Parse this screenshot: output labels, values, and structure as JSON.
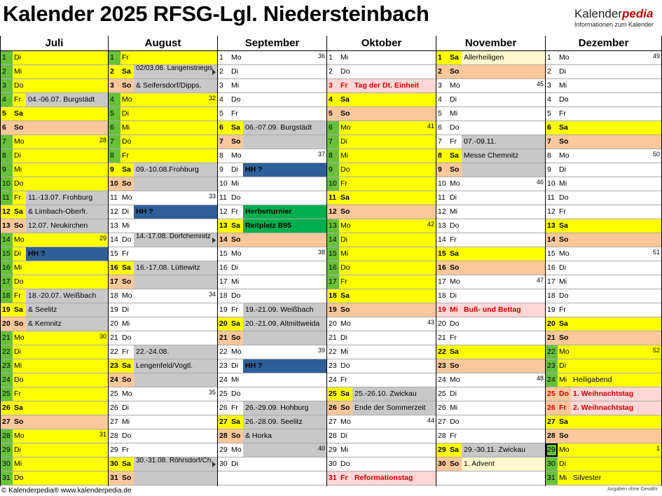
{
  "title": "Kalender 2025 RFSG-Lgl. Niedersteinbach",
  "brand": {
    "name_a": "Kalender",
    "name_b": "pedia",
    "tagline": "Informationen zum Kalender"
  },
  "footer": {
    "left": "© Kalenderpedia®   www.kalenderpedia.de",
    "right": "Angaben ohne Gewähr"
  },
  "colors": {
    "weekday_green": "#66c23a",
    "yellow": "#ffff00",
    "weekend_orange": "#fcc89b",
    "event_gray": "#c8c8c8",
    "hh_blue": "#2f5f99",
    "turnier_green": "#00b04f",
    "holiday_pink": "#ffd7d7",
    "light_yellow": "#fff8cc"
  },
  "months": [
    {
      "name": "Juli",
      "rows": [
        {
          "d": "1",
          "w": "Di",
          "t": "wd"
        },
        {
          "d": "2",
          "w": "Mi",
          "t": "wd"
        },
        {
          "d": "3",
          "w": "Do",
          "t": "wd"
        },
        {
          "d": "4",
          "w": "Fr",
          "t": "wd",
          "ev": "04.-06.07. Burgstädt",
          "ec": "gray"
        },
        {
          "d": "5",
          "w": "Sa",
          "t": "sat"
        },
        {
          "d": "6",
          "w": "So",
          "t": "sun"
        },
        {
          "d": "7",
          "w": "Mo",
          "t": "wd",
          "kw": "28"
        },
        {
          "d": "8",
          "w": "Di",
          "t": "wd"
        },
        {
          "d": "9",
          "w": "Mi",
          "t": "wd"
        },
        {
          "d": "10",
          "w": "Do",
          "t": "wd"
        },
        {
          "d": "11",
          "w": "Fr",
          "t": "wd",
          "ev": "11.-13.07. Frohburg",
          "ec": "gray"
        },
        {
          "d": "12",
          "w": "Sa",
          "t": "sat",
          "ev": "& Limbach-Oberfr.",
          "ec": "gray"
        },
        {
          "d": "13",
          "w": "So",
          "t": "sun",
          "ev": "12.07. Neukirchen",
          "ec": "gray"
        },
        {
          "d": "14",
          "w": "Mo",
          "t": "wd",
          "kw": "29"
        },
        {
          "d": "15",
          "w": "Di",
          "t": "wd",
          "ev": "HH ?",
          "ec": "blue"
        },
        {
          "d": "16",
          "w": "Mi",
          "t": "wd"
        },
        {
          "d": "17",
          "w": "Do",
          "t": "wd"
        },
        {
          "d": "18",
          "w": "Fr",
          "t": "wd",
          "ev": "18.-20.07. Weißbach",
          "ec": "gray"
        },
        {
          "d": "19",
          "w": "Sa",
          "t": "sat",
          "ev": "& Seelitz",
          "ec": "gray"
        },
        {
          "d": "20",
          "w": "So",
          "t": "sun",
          "ev": "& Kemnitz",
          "ec": "gray"
        },
        {
          "d": "21",
          "w": "Mo",
          "t": "wd",
          "kw": "30"
        },
        {
          "d": "22",
          "w": "Di",
          "t": "wd"
        },
        {
          "d": "23",
          "w": "Mi",
          "t": "wd"
        },
        {
          "d": "24",
          "w": "Do",
          "t": "wd"
        },
        {
          "d": "25",
          "w": "Fr",
          "t": "wd"
        },
        {
          "d": "26",
          "w": "Sa",
          "t": "sat"
        },
        {
          "d": "27",
          "w": "So",
          "t": "sun"
        },
        {
          "d": "28",
          "w": "Mo",
          "t": "wd",
          "kw": "31"
        },
        {
          "d": "29",
          "w": "Di",
          "t": "wd"
        },
        {
          "d": "30",
          "w": "Mi",
          "t": "wd"
        },
        {
          "d": "31",
          "w": "Do",
          "t": "wd"
        }
      ]
    },
    {
      "name": "August",
      "rows": [
        {
          "d": "1",
          "w": "Fr",
          "t": "wd"
        },
        {
          "d": "2",
          "w": "Sa",
          "t": "sat",
          "ev": "02/03.08. Langenstriegis",
          "ec": "gray",
          "two": true,
          "mk": true
        },
        {
          "d": "3",
          "w": "So",
          "t": "sun",
          "ev": "& Seifersdorf/Dipps.",
          "ec": "gray"
        },
        {
          "d": "4",
          "w": "Mo",
          "t": "wd",
          "kw": "32"
        },
        {
          "d": "5",
          "w": "Di",
          "t": "wd"
        },
        {
          "d": "6",
          "w": "Mi",
          "t": "wd"
        },
        {
          "d": "7",
          "w": "Do",
          "t": "wd"
        },
        {
          "d": "8",
          "w": "Fr",
          "t": "wd"
        },
        {
          "d": "9",
          "w": "Sa",
          "t": "sat",
          "ev": "09.-10.08.Frohburg",
          "ec": "gray"
        },
        {
          "d": "10",
          "w": "So",
          "t": "sun",
          "ec": "gray"
        },
        {
          "d": "11",
          "w": "Mo",
          "t": "plain",
          "kw": "33"
        },
        {
          "d": "12",
          "w": "Di",
          "t": "plain",
          "ev": "HH ?",
          "ec": "blue"
        },
        {
          "d": "13",
          "w": "Mi",
          "t": "plain"
        },
        {
          "d": "14",
          "w": "Do",
          "t": "plain",
          "ev": "14.-17.08. Dorfchemnitz",
          "ec": "gray",
          "two": true,
          "mk": true
        },
        {
          "d": "15",
          "w": "Fr",
          "t": "plain"
        },
        {
          "d": "16",
          "w": "Sa",
          "t": "sat",
          "ev": "16.-17.08. Lüttewitz",
          "ec": "gray"
        },
        {
          "d": "17",
          "w": "So",
          "t": "sun",
          "ec": "gray"
        },
        {
          "d": "18",
          "w": "Mo",
          "t": "plain",
          "kw": "34"
        },
        {
          "d": "19",
          "w": "Di",
          "t": "plain"
        },
        {
          "d": "20",
          "w": "Mi",
          "t": "plain"
        },
        {
          "d": "21",
          "w": "Do",
          "t": "plain"
        },
        {
          "d": "22",
          "w": "Fr",
          "t": "plain",
          "ev": "22.-24.08.",
          "ec": "gray"
        },
        {
          "d": "23",
          "w": "Sa",
          "t": "sat",
          "ev": "Lengenfeld/Vogtl.",
          "ec": "gray"
        },
        {
          "d": "24",
          "w": "So",
          "t": "sun",
          "ec": "gray"
        },
        {
          "d": "25",
          "w": "Mo",
          "t": "plain",
          "kw": "35"
        },
        {
          "d": "26",
          "w": "Di",
          "t": "plain"
        },
        {
          "d": "27",
          "w": "Mi",
          "t": "plain"
        },
        {
          "d": "28",
          "w": "Do",
          "t": "plain"
        },
        {
          "d": "29",
          "w": "Fr",
          "t": "plain"
        },
        {
          "d": "30",
          "w": "Sa",
          "t": "sat",
          "ev": "30.-31.08. Röhrsdorf/Ch.",
          "ec": "gray",
          "two": true,
          "mk": true
        },
        {
          "d": "31",
          "w": "So",
          "t": "sun",
          "ec": "gray"
        }
      ]
    },
    {
      "name": "September",
      "rows": [
        {
          "d": "1",
          "w": "Mo",
          "t": "plain",
          "kw": "36"
        },
        {
          "d": "2",
          "w": "Di",
          "t": "plain"
        },
        {
          "d": "3",
          "w": "Mi",
          "t": "plain"
        },
        {
          "d": "4",
          "w": "Do",
          "t": "plain"
        },
        {
          "d": "5",
          "w": "Fr",
          "t": "plain"
        },
        {
          "d": "6",
          "w": "Sa",
          "t": "sat",
          "ev": "06.-07.09. Burgstädt",
          "ec": "gray"
        },
        {
          "d": "7",
          "w": "So",
          "t": "sun",
          "ec": "gray"
        },
        {
          "d": "8",
          "w": "Mo",
          "t": "plain",
          "kw": "37"
        },
        {
          "d": "9",
          "w": "Di",
          "t": "plain",
          "ev": "HH ?",
          "ec": "blue"
        },
        {
          "d": "10",
          "w": "Mi",
          "t": "plain"
        },
        {
          "d": "11",
          "w": "Do",
          "t": "plain"
        },
        {
          "d": "12",
          "w": "Fr",
          "t": "plain",
          "ev": "Herbstturnier",
          "ec": "green"
        },
        {
          "d": "13",
          "w": "Sa",
          "t": "sat",
          "ev": "Reitplatz B95",
          "ec": "green"
        },
        {
          "d": "14",
          "w": "So",
          "t": "sun"
        },
        {
          "d": "15",
          "w": "Mo",
          "t": "plain",
          "kw": "38"
        },
        {
          "d": "16",
          "w": "Di",
          "t": "plain"
        },
        {
          "d": "17",
          "w": "Mi",
          "t": "plain"
        },
        {
          "d": "18",
          "w": "Do",
          "t": "plain"
        },
        {
          "d": "19",
          "w": "Fr",
          "t": "plain",
          "ev": "19.-21.09. Weißbach",
          "ec": "gray"
        },
        {
          "d": "20",
          "w": "Sa",
          "t": "sat",
          "ev": "20.-21.09. Altmittweida",
          "ec": "gray"
        },
        {
          "d": "21",
          "w": "So",
          "t": "sun",
          "ec": "gray"
        },
        {
          "d": "22",
          "w": "Mo",
          "t": "plain",
          "kw": "39"
        },
        {
          "d": "23",
          "w": "Di",
          "t": "plain",
          "ev": "HH ?",
          "ec": "blue"
        },
        {
          "d": "24",
          "w": "Mi",
          "t": "plain"
        },
        {
          "d": "25",
          "w": "Do",
          "t": "plain"
        },
        {
          "d": "26",
          "w": "Fr",
          "t": "plain",
          "ev": "26.-29.09. Hohburg",
          "ec": "gray"
        },
        {
          "d": "27",
          "w": "Sa",
          "t": "sat",
          "ev": "26.-28.09. Seelitz",
          "ec": "gray"
        },
        {
          "d": "28",
          "w": "So",
          "t": "sun",
          "ev": "& Horka",
          "ec": "gray"
        },
        {
          "d": "29",
          "w": "Mo",
          "t": "plain",
          "kw": "40",
          "ec": "gray"
        },
        {
          "d": "30",
          "w": "Di",
          "t": "plain"
        },
        {
          "d": "",
          "w": "",
          "t": "empty"
        }
      ]
    },
    {
      "name": "Oktober",
      "rows": [
        {
          "d": "1",
          "w": "Mi",
          "t": "plain"
        },
        {
          "d": "2",
          "w": "Do",
          "t": "plain"
        },
        {
          "d": "3",
          "w": "Fr",
          "t": "hol",
          "ev": "Tag der Dt. Einheit",
          "ec": "pink"
        },
        {
          "d": "4",
          "w": "Sa",
          "t": "sat"
        },
        {
          "d": "5",
          "w": "So",
          "t": "sun"
        },
        {
          "d": "6",
          "w": "Mo",
          "t": "wd",
          "kw": "41"
        },
        {
          "d": "7",
          "w": "Di",
          "t": "wd"
        },
        {
          "d": "8",
          "w": "Mi",
          "t": "wd"
        },
        {
          "d": "9",
          "w": "Do",
          "t": "wd"
        },
        {
          "d": "10",
          "w": "Fr",
          "t": "wd"
        },
        {
          "d": "11",
          "w": "Sa",
          "t": "sat"
        },
        {
          "d": "12",
          "w": "So",
          "t": "sun"
        },
        {
          "d": "13",
          "w": "Mo",
          "t": "wd",
          "kw": "42"
        },
        {
          "d": "14",
          "w": "Di",
          "t": "wd"
        },
        {
          "d": "15",
          "w": "Mi",
          "t": "wd"
        },
        {
          "d": "16",
          "w": "Do",
          "t": "wd"
        },
        {
          "d": "17",
          "w": "Fr",
          "t": "wd"
        },
        {
          "d": "18",
          "w": "Sa",
          "t": "sat"
        },
        {
          "d": "19",
          "w": "So",
          "t": "sun"
        },
        {
          "d": "20",
          "w": "Mo",
          "t": "plain",
          "kw": "43"
        },
        {
          "d": "21",
          "w": "Di",
          "t": "plain"
        },
        {
          "d": "22",
          "w": "Mi",
          "t": "plain"
        },
        {
          "d": "23",
          "w": "Do",
          "t": "plain"
        },
        {
          "d": "24",
          "w": "Fr",
          "t": "plain"
        },
        {
          "d": "25",
          "w": "Sa",
          "t": "sat",
          "ev": "25.-26.10. Zwickau",
          "ec": "gray"
        },
        {
          "d": "26",
          "w": "So",
          "t": "sun",
          "ev": "Ende der Sommerzeit",
          "ec": "gray"
        },
        {
          "d": "27",
          "w": "Mo",
          "t": "plain",
          "kw": "44"
        },
        {
          "d": "28",
          "w": "Di",
          "t": "plain"
        },
        {
          "d": "29",
          "w": "Mi",
          "t": "plain"
        },
        {
          "d": "30",
          "w": "Do",
          "t": "plain"
        },
        {
          "d": "31",
          "w": "Fr",
          "t": "hol",
          "ev": "Reformationstag",
          "ec": "pink"
        }
      ]
    },
    {
      "name": "November",
      "rows": [
        {
          "d": "1",
          "w": "Sa",
          "t": "sat",
          "ev": "Allerheiligen",
          "ec": "lightyellow"
        },
        {
          "d": "2",
          "w": "So",
          "t": "sun"
        },
        {
          "d": "3",
          "w": "Mo",
          "t": "plain",
          "kw": "45"
        },
        {
          "d": "4",
          "w": "Di",
          "t": "plain"
        },
        {
          "d": "5",
          "w": "Mi",
          "t": "plain"
        },
        {
          "d": "6",
          "w": "Do",
          "t": "plain"
        },
        {
          "d": "7",
          "w": "Fr",
          "t": "plain",
          "ev": "07.-09.11.",
          "ec": "gray"
        },
        {
          "d": "8",
          "w": "Sa",
          "t": "sat",
          "ev": "Messe Chemnitz",
          "ec": "gray"
        },
        {
          "d": "9",
          "w": "So",
          "t": "sun",
          "ec": "gray"
        },
        {
          "d": "10",
          "w": "Mo",
          "t": "plain",
          "kw": "46"
        },
        {
          "d": "11",
          "w": "Di",
          "t": "plain"
        },
        {
          "d": "12",
          "w": "Mi",
          "t": "plain"
        },
        {
          "d": "13",
          "w": "Do",
          "t": "plain"
        },
        {
          "d": "14",
          "w": "Fr",
          "t": "plain"
        },
        {
          "d": "15",
          "w": "Sa",
          "t": "sat"
        },
        {
          "d": "16",
          "w": "So",
          "t": "sun"
        },
        {
          "d": "17",
          "w": "Mo",
          "t": "plain",
          "kw": "47"
        },
        {
          "d": "18",
          "w": "Di",
          "t": "plain"
        },
        {
          "d": "19",
          "w": "Mi",
          "t": "hol",
          "ev": "Buß- und Bettag",
          "ec": "pink"
        },
        {
          "d": "20",
          "w": "Do",
          "t": "plain"
        },
        {
          "d": "21",
          "w": "Fr",
          "t": "plain"
        },
        {
          "d": "22",
          "w": "Sa",
          "t": "sat"
        },
        {
          "d": "23",
          "w": "So",
          "t": "sun"
        },
        {
          "d": "24",
          "w": "Mo",
          "t": "plain",
          "kw": "48"
        },
        {
          "d": "25",
          "w": "Di",
          "t": "plain"
        },
        {
          "d": "26",
          "w": "Mi",
          "t": "plain"
        },
        {
          "d": "27",
          "w": "Do",
          "t": "plain"
        },
        {
          "d": "28",
          "w": "Fr",
          "t": "plain"
        },
        {
          "d": "29",
          "w": "Sa",
          "t": "sat",
          "ev": "29.-30.11. Zwickau",
          "ec": "gray"
        },
        {
          "d": "30",
          "w": "So",
          "t": "sun",
          "ev": "1. Advent",
          "ec": "lightyellow"
        },
        {
          "d": "",
          "w": "",
          "t": "empty"
        }
      ]
    },
    {
      "name": "Dezember",
      "rows": [
        {
          "d": "1",
          "w": "Mo",
          "t": "plain",
          "kw": "49"
        },
        {
          "d": "2",
          "w": "Di",
          "t": "plain"
        },
        {
          "d": "3",
          "w": "Mi",
          "t": "plain"
        },
        {
          "d": "4",
          "w": "Do",
          "t": "plain"
        },
        {
          "d": "5",
          "w": "Fr",
          "t": "plain"
        },
        {
          "d": "6",
          "w": "Sa",
          "t": "sat"
        },
        {
          "d": "7",
          "w": "So",
          "t": "sun"
        },
        {
          "d": "8",
          "w": "Mo",
          "t": "plain",
          "kw": "50"
        },
        {
          "d": "9",
          "w": "Di",
          "t": "plain"
        },
        {
          "d": "10",
          "w": "Mi",
          "t": "plain"
        },
        {
          "d": "11",
          "w": "Do",
          "t": "plain"
        },
        {
          "d": "12",
          "w": "Fr",
          "t": "plain"
        },
        {
          "d": "13",
          "w": "Sa",
          "t": "sat"
        },
        {
          "d": "14",
          "w": "So",
          "t": "sun"
        },
        {
          "d": "15",
          "w": "Mo",
          "t": "plain",
          "kw": "51"
        },
        {
          "d": "16",
          "w": "Di",
          "t": "plain"
        },
        {
          "d": "17",
          "w": "Mi",
          "t": "plain"
        },
        {
          "d": "18",
          "w": "Do",
          "t": "plain"
        },
        {
          "d": "19",
          "w": "Fr",
          "t": "plain"
        },
        {
          "d": "20",
          "w": "Sa",
          "t": "sat"
        },
        {
          "d": "21",
          "w": "So",
          "t": "sun"
        },
        {
          "d": "22",
          "w": "Mo",
          "t": "wd",
          "kw": "52"
        },
        {
          "d": "23",
          "w": "Di",
          "t": "wd"
        },
        {
          "d": "24",
          "w": "Mi",
          "t": "wd",
          "ev": "Heiligabend",
          "ec": "yellow"
        },
        {
          "d": "25",
          "w": "Do",
          "t": "hol",
          "ev": "1. Weihnachtstag",
          "ec": "pink"
        },
        {
          "d": "26",
          "w": "Fr",
          "t": "hol",
          "ev": "2. Weihnachtstag",
          "ec": "pink"
        },
        {
          "d": "27",
          "w": "Sa",
          "t": "sat"
        },
        {
          "d": "28",
          "w": "So",
          "t": "sun"
        },
        {
          "d": "29",
          "w": "Mo",
          "t": "wd",
          "kw": "1",
          "cur": true
        },
        {
          "d": "30",
          "w": "Di",
          "t": "wd"
        },
        {
          "d": "31",
          "w": "Mi",
          "t": "wd",
          "ev": "Silvester",
          "ec": "yellow"
        }
      ]
    }
  ]
}
